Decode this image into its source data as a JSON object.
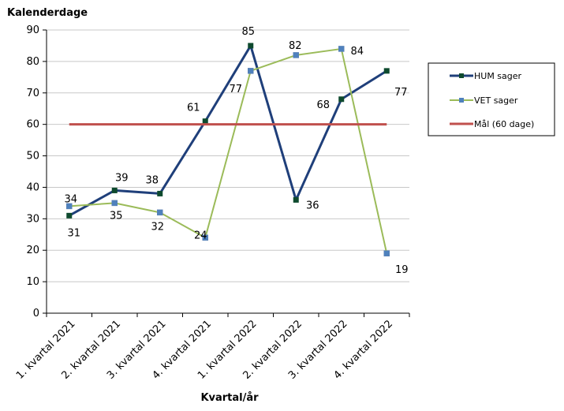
{
  "chart_data": {
    "type": "line",
    "title": "",
    "ylabel": "Kalenderdage",
    "xlabel": "Kvartal/år",
    "ylim": [
      0,
      90
    ],
    "yticks": [
      0,
      10,
      20,
      30,
      40,
      50,
      60,
      70,
      80,
      90
    ],
    "grid": true,
    "legend_position": "right",
    "categories": [
      "1. kvartal 2021",
      "2. kvartal 2021",
      "3. kvartal 2021",
      "4. kvartal 2021",
      "1. kvartal 2022",
      "2. kvartal 2022",
      "3. kvartal 2022",
      "4. kvartal 2022"
    ],
    "series": [
      {
        "name": "HUM sager",
        "color": "#1f3f7a",
        "marker_color": "#0e4a2e",
        "marker": "square",
        "values": [
          31,
          39,
          38,
          61,
          85,
          36,
          68,
          77
        ]
      },
      {
        "name": "VET sager",
        "color": "#9bbb59",
        "marker_color": "#4f81bd",
        "marker": "square",
        "values": [
          34,
          35,
          32,
          24,
          77,
          82,
          84,
          19
        ]
      },
      {
        "name": "Mål (60 dage)",
        "color": "#c0504d",
        "marker": "none",
        "values": [
          60,
          60,
          60,
          60,
          60,
          60,
          60,
          60
        ]
      }
    ]
  }
}
